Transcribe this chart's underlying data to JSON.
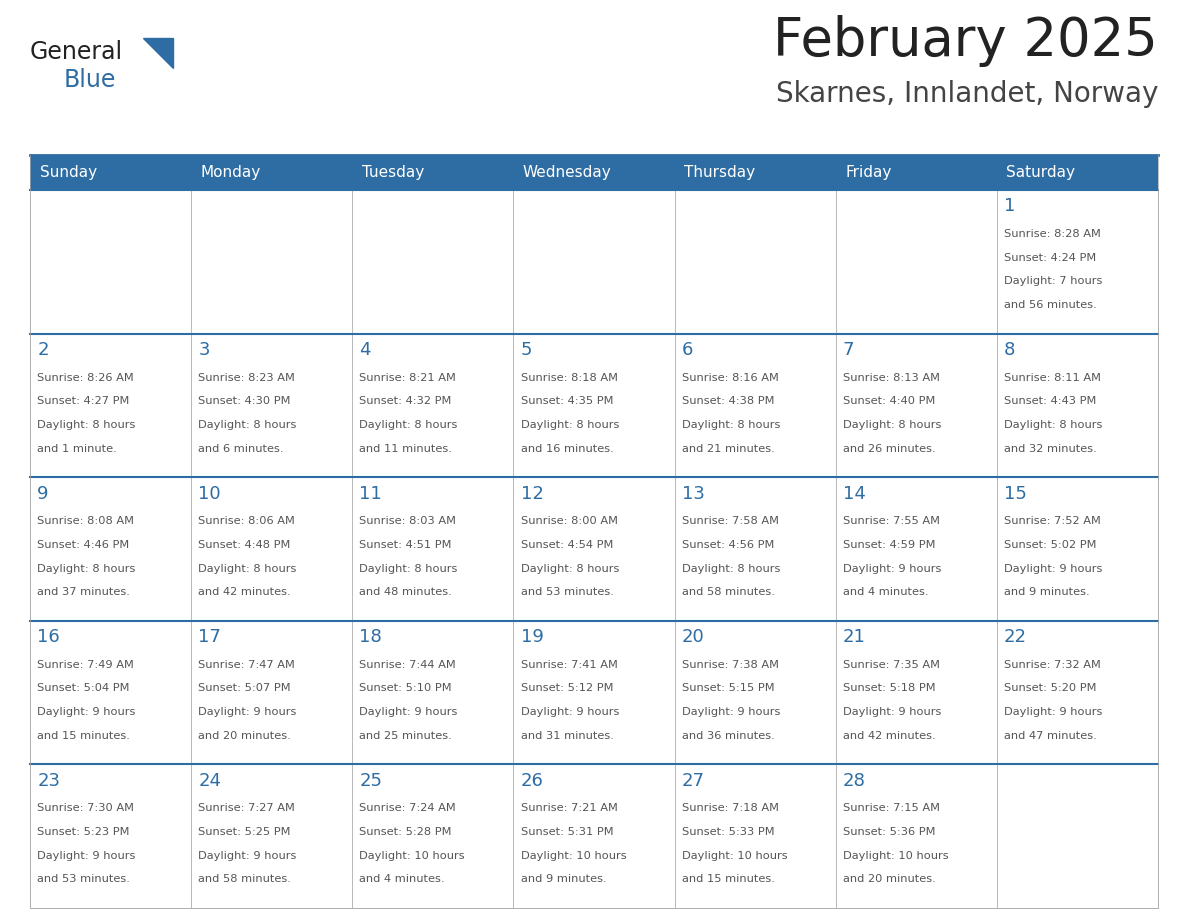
{
  "title": "February 2025",
  "subtitle": "Skarnes, Innlandet, Norway",
  "header_bg": "#2E6DA4",
  "header_text_color": "#FFFFFF",
  "border_color": "#2E6DA4",
  "cell_border_color": "#AAAAAA",
  "title_color": "#222222",
  "subtitle_color": "#444444",
  "day_number_color": "#2E6DA4",
  "info_color": "#555555",
  "days_of_week": [
    "Sunday",
    "Monday",
    "Tuesday",
    "Wednesday",
    "Thursday",
    "Friday",
    "Saturday"
  ],
  "weeks": [
    [
      {
        "day": null,
        "info": ""
      },
      {
        "day": null,
        "info": ""
      },
      {
        "day": null,
        "info": ""
      },
      {
        "day": null,
        "info": ""
      },
      {
        "day": null,
        "info": ""
      },
      {
        "day": null,
        "info": ""
      },
      {
        "day": 1,
        "info": "Sunrise: 8:28 AM\nSunset: 4:24 PM\nDaylight: 7 hours\nand 56 minutes."
      }
    ],
    [
      {
        "day": 2,
        "info": "Sunrise: 8:26 AM\nSunset: 4:27 PM\nDaylight: 8 hours\nand 1 minute."
      },
      {
        "day": 3,
        "info": "Sunrise: 8:23 AM\nSunset: 4:30 PM\nDaylight: 8 hours\nand 6 minutes."
      },
      {
        "day": 4,
        "info": "Sunrise: 8:21 AM\nSunset: 4:32 PM\nDaylight: 8 hours\nand 11 minutes."
      },
      {
        "day": 5,
        "info": "Sunrise: 8:18 AM\nSunset: 4:35 PM\nDaylight: 8 hours\nand 16 minutes."
      },
      {
        "day": 6,
        "info": "Sunrise: 8:16 AM\nSunset: 4:38 PM\nDaylight: 8 hours\nand 21 minutes."
      },
      {
        "day": 7,
        "info": "Sunrise: 8:13 AM\nSunset: 4:40 PM\nDaylight: 8 hours\nand 26 minutes."
      },
      {
        "day": 8,
        "info": "Sunrise: 8:11 AM\nSunset: 4:43 PM\nDaylight: 8 hours\nand 32 minutes."
      }
    ],
    [
      {
        "day": 9,
        "info": "Sunrise: 8:08 AM\nSunset: 4:46 PM\nDaylight: 8 hours\nand 37 minutes."
      },
      {
        "day": 10,
        "info": "Sunrise: 8:06 AM\nSunset: 4:48 PM\nDaylight: 8 hours\nand 42 minutes."
      },
      {
        "day": 11,
        "info": "Sunrise: 8:03 AM\nSunset: 4:51 PM\nDaylight: 8 hours\nand 48 minutes."
      },
      {
        "day": 12,
        "info": "Sunrise: 8:00 AM\nSunset: 4:54 PM\nDaylight: 8 hours\nand 53 minutes."
      },
      {
        "day": 13,
        "info": "Sunrise: 7:58 AM\nSunset: 4:56 PM\nDaylight: 8 hours\nand 58 minutes."
      },
      {
        "day": 14,
        "info": "Sunrise: 7:55 AM\nSunset: 4:59 PM\nDaylight: 9 hours\nand 4 minutes."
      },
      {
        "day": 15,
        "info": "Sunrise: 7:52 AM\nSunset: 5:02 PM\nDaylight: 9 hours\nand 9 minutes."
      }
    ],
    [
      {
        "day": 16,
        "info": "Sunrise: 7:49 AM\nSunset: 5:04 PM\nDaylight: 9 hours\nand 15 minutes."
      },
      {
        "day": 17,
        "info": "Sunrise: 7:47 AM\nSunset: 5:07 PM\nDaylight: 9 hours\nand 20 minutes."
      },
      {
        "day": 18,
        "info": "Sunrise: 7:44 AM\nSunset: 5:10 PM\nDaylight: 9 hours\nand 25 minutes."
      },
      {
        "day": 19,
        "info": "Sunrise: 7:41 AM\nSunset: 5:12 PM\nDaylight: 9 hours\nand 31 minutes."
      },
      {
        "day": 20,
        "info": "Sunrise: 7:38 AM\nSunset: 5:15 PM\nDaylight: 9 hours\nand 36 minutes."
      },
      {
        "day": 21,
        "info": "Sunrise: 7:35 AM\nSunset: 5:18 PM\nDaylight: 9 hours\nand 42 minutes."
      },
      {
        "day": 22,
        "info": "Sunrise: 7:32 AM\nSunset: 5:20 PM\nDaylight: 9 hours\nand 47 minutes."
      }
    ],
    [
      {
        "day": 23,
        "info": "Sunrise: 7:30 AM\nSunset: 5:23 PM\nDaylight: 9 hours\nand 53 minutes."
      },
      {
        "day": 24,
        "info": "Sunrise: 7:27 AM\nSunset: 5:25 PM\nDaylight: 9 hours\nand 58 minutes."
      },
      {
        "day": 25,
        "info": "Sunrise: 7:24 AM\nSunset: 5:28 PM\nDaylight: 10 hours\nand 4 minutes."
      },
      {
        "day": 26,
        "info": "Sunrise: 7:21 AM\nSunset: 5:31 PM\nDaylight: 10 hours\nand 9 minutes."
      },
      {
        "day": 27,
        "info": "Sunrise: 7:18 AM\nSunset: 5:33 PM\nDaylight: 10 hours\nand 15 minutes."
      },
      {
        "day": 28,
        "info": "Sunrise: 7:15 AM\nSunset: 5:36 PM\nDaylight: 10 hours\nand 20 minutes."
      },
      {
        "day": null,
        "info": ""
      }
    ]
  ],
  "logo_general_color": "#222222",
  "logo_blue_color": "#2E6DA4",
  "logo_triangle_color": "#2E6DA4"
}
